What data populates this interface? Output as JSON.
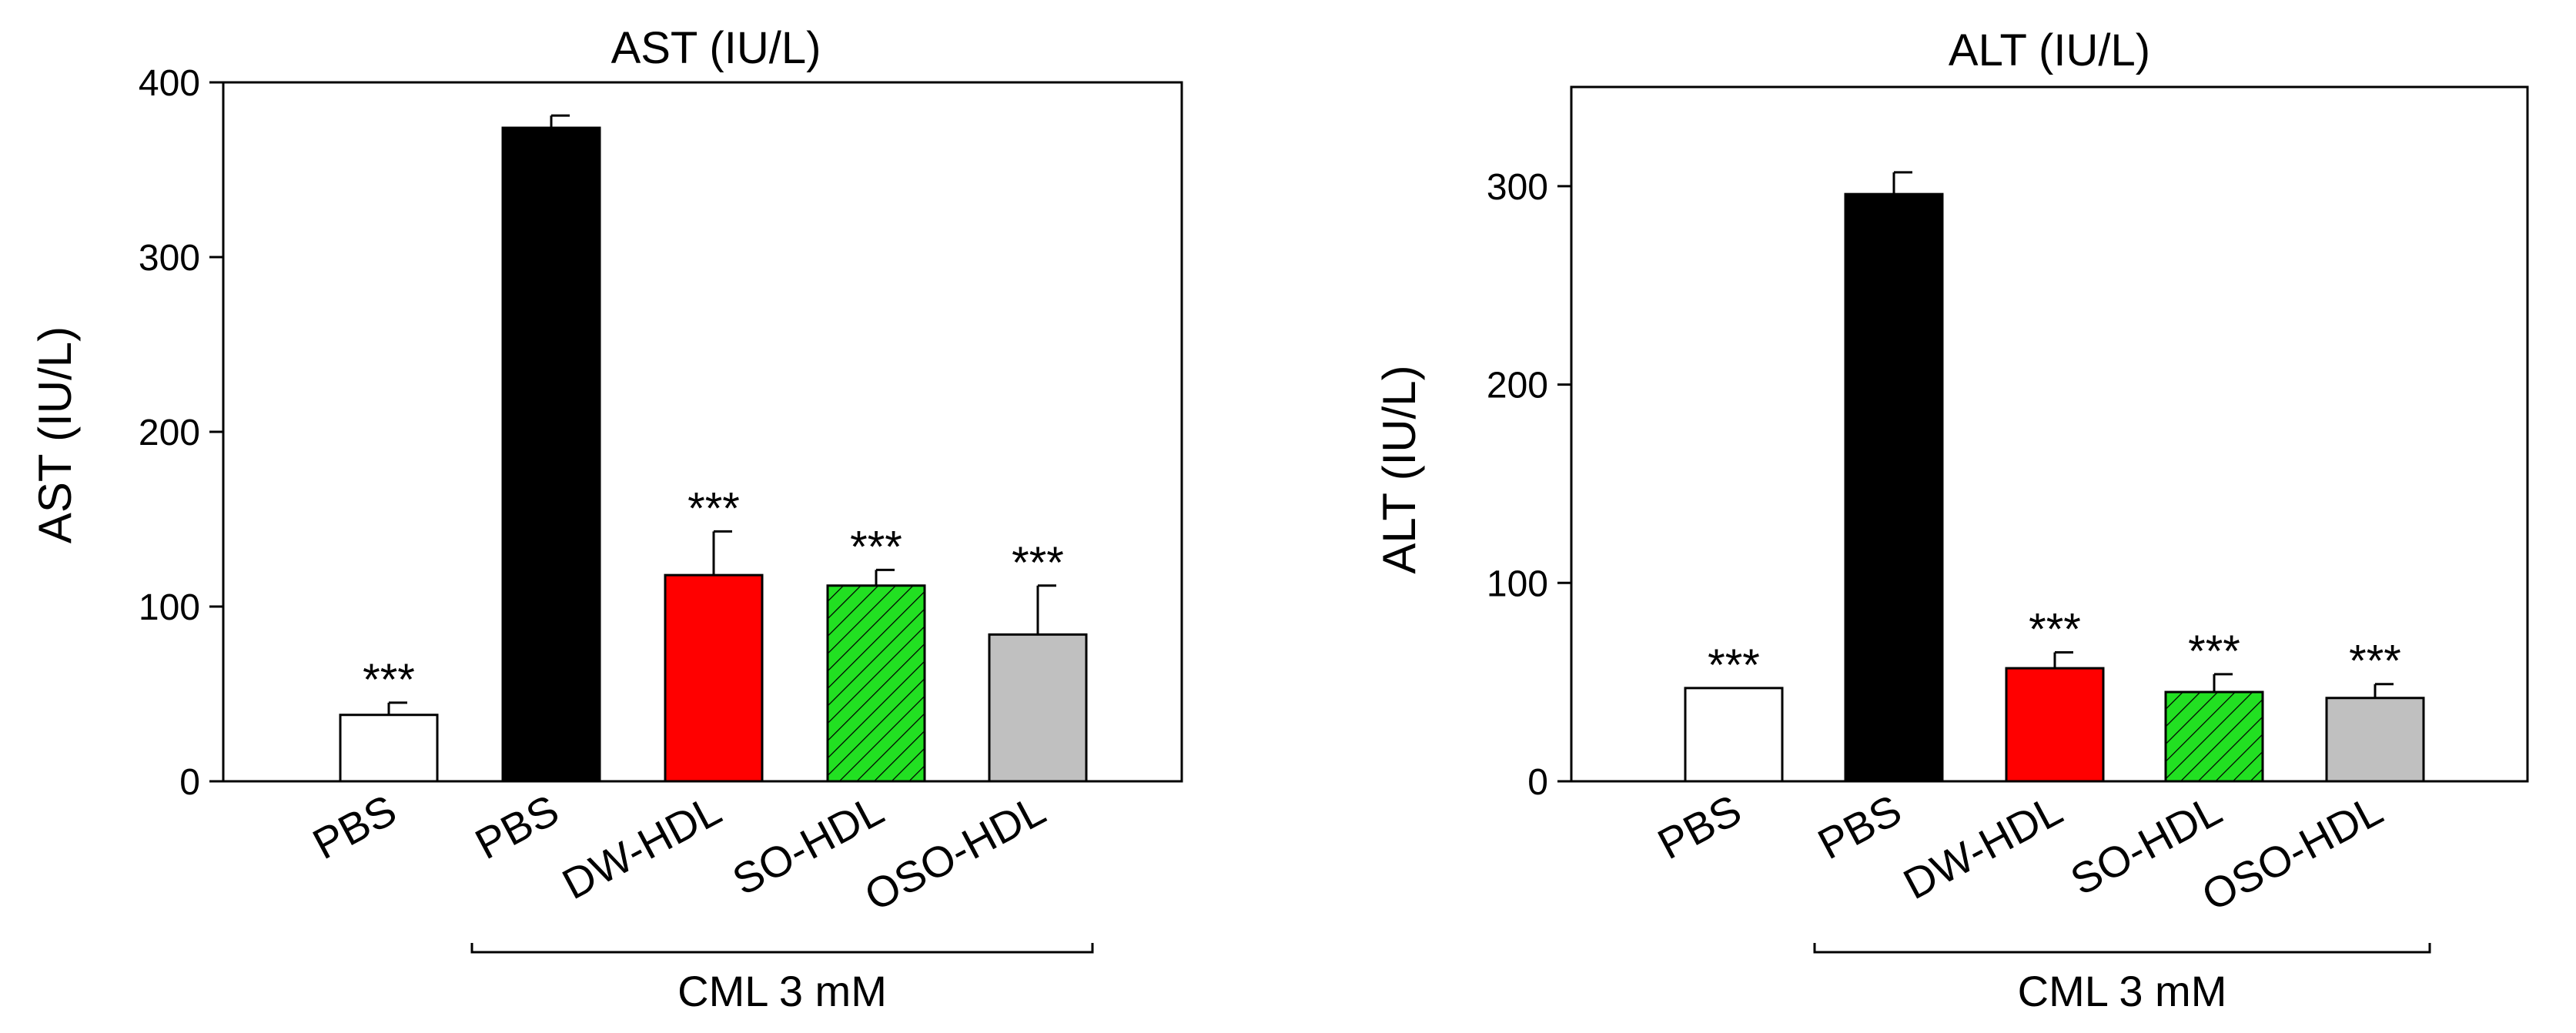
{
  "chart_data": [
    {
      "type": "bar",
      "title": "AST (IU/L)",
      "xlabel": "",
      "ylabel": "AST (IU/L)",
      "ylim": [
        0,
        400
      ],
      "yticks": [
        0,
        100,
        200,
        300,
        400
      ],
      "grid": false,
      "categories": [
        "PBS",
        "PBS",
        "DW-HDL",
        "SO-HDL",
        "OSO-HDL"
      ],
      "values": [
        38,
        374,
        118,
        112,
        84
      ],
      "errors": [
        7,
        7,
        25,
        9,
        28
      ],
      "significance": [
        "***",
        "",
        "***",
        "***",
        "***"
      ],
      "fills": [
        "#ffffff",
        "#000000",
        "#ff0000",
        "#22e022",
        "#c0c0c0"
      ],
      "hatched": [
        false,
        false,
        false,
        true,
        false
      ],
      "bracket_label": "CML 3 mM",
      "bracket_start_index": 1,
      "bracket_end_index": 4
    },
    {
      "type": "bar",
      "title": "ALT (IU/L)",
      "xlabel": "",
      "ylabel": "ALT (IU/L)",
      "ylim": [
        0,
        350
      ],
      "yticks": [
        0,
        100,
        200,
        300
      ],
      "grid": false,
      "categories": [
        "PBS",
        "PBS",
        "DW-HDL",
        "SO-HDL",
        "OSO-HDL"
      ],
      "values": [
        47,
        296,
        57,
        45,
        42
      ],
      "errors": [
        0,
        11,
        8,
        9,
        7
      ],
      "significance": [
        "***",
        "",
        "***",
        "***",
        "***"
      ],
      "fills": [
        "#ffffff",
        "#000000",
        "#ff0000",
        "#22e022",
        "#c0c0c0"
      ],
      "hatched": [
        false,
        false,
        false,
        true,
        false
      ],
      "bracket_label": "CML 3 mM",
      "bracket_start_index": 1,
      "bracket_end_index": 4
    }
  ]
}
